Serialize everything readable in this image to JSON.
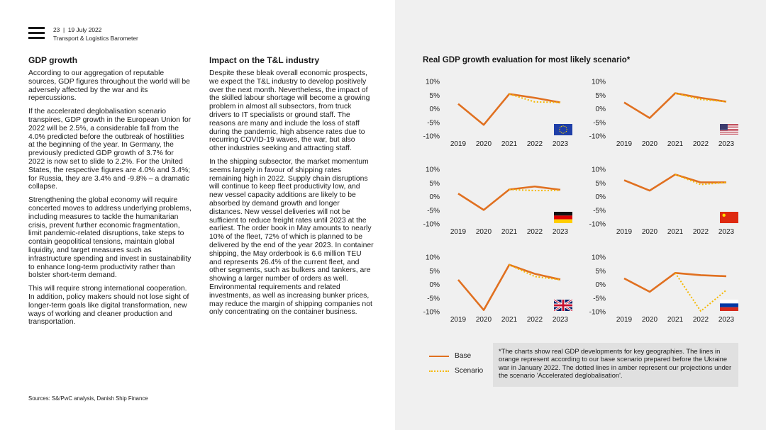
{
  "header": {
    "page_number": "23",
    "separator": "|",
    "date": "19 July 2022",
    "subtitle": "Transport & Logistics Barometer"
  },
  "left_column": {
    "title": "GDP growth",
    "paragraphs": [
      "According to our aggregation of reputable sources, GDP figures throughout the world will be adversely affected by the war and its repercussions.",
      "If the accelerated deglobalisation scenario transpires, GDP growth in the European Union for 2022 will be 2.5%, a considerable fall from the 4.0% predicted before the outbreak of hostilities at the beginning of the year. In Germany, the previously predicted GDP growth of 3.7% for 2022 is now set to slide to 2.2%. For the United States, the respective figures are 4.0% and 3.4%; for Russia, they are 3.4% and -9.8% – a dramatic collapse.",
      "Strengthening the global economy will require concerted moves to address underlying problems, including measures to tackle the humanitarian crisis, prevent further economic fragmentation, limit pandemic-related disruptions, take steps to contain geopolitical tensions, maintain global liquidity, and target measures such as infrastructure spending and invest in sustainability to enhance long-term productivity rather than bolster short-term demand.",
      "This will require strong international cooperation. In addition, policy makers should not lose sight of longer-term goals like digital transformation, new ways of working and cleaner production and transportation."
    ]
  },
  "middle_column": {
    "title": "Impact on the T&L industry",
    "paragraphs": [
      "Despite these bleak overall economic prospects, we expect the T&L industry to develop positively over the next month. Nevertheless, the impact of the skilled labour shortage will become a growing problem in almost all subsectors, from truck drivers to IT specialists or ground staff. The reasons are many and include the loss of staff during the pandemic, high absence rates due to recurring COVID-19 waves, the war, but also other industries seeking and attracting staff.",
      "In the shipping subsector, the market momentum seems largely in favour of shipping rates remaining high in 2022. Supply chain disruptions will continue to keep fleet productivity low, and new vessel capacity additions are likely to be absorbed by demand growth and longer distances. New vessel deliveries will not be sufficient to reduce freight rates until 2023 at the earliest. The order book in May amounts to nearly 10% of the fleet, 72% of which is planned to be delivered by the end of the year 2023. In container shipping, the May orderbook is 6.6 million TEU and represents 26.4% of the current fleet, and other segments, such as bulkers and tankers, are showing a larger number of orders as well. Environmental requirements and related investments, as well as increasing bunker prices, may reduce the margin of shipping companies not only concentrating on the container business."
    ]
  },
  "sources": "Sources: S&/PwC analysis, Danish Ship Finance",
  "charts_title": "Real GDP growth evaluation for most likely scenario*",
  "legend": {
    "base": "Base",
    "scenario": "Scenario"
  },
  "note": "*The charts show real GDP developments for key geographies. The lines in orange represent according to our base scenario prepared before the Ukraine war in January 2022. The dotted lines in amber represent our projections under the scenario 'Accelerated deglobalisation'.",
  "colors": {
    "base": "#e07020",
    "scenario": "#f5b800",
    "panel_bg": "#f0f0f0",
    "note_bg": "#e0e0e0"
  },
  "chart_data": [
    {
      "type": "line",
      "region_icon": "eu-flag-icon",
      "x": [
        "2019",
        "2020",
        "2021",
        "2022",
        "2023"
      ],
      "y_ticks": [
        "10%",
        "5%",
        "0%",
        "-5%",
        "-10%"
      ],
      "ylim": [
        -10,
        10
      ],
      "series": [
        {
          "name": "Base",
          "values": [
            1.8,
            -5.9,
            5.4,
            4.0,
            2.3
          ]
        },
        {
          "name": "Scenario",
          "values": [
            null,
            null,
            5.4,
            2.5,
            2.3
          ]
        }
      ]
    },
    {
      "type": "line",
      "region_icon": "us-flag-icon",
      "x": [
        "2019",
        "2020",
        "2021",
        "2022",
        "2023"
      ],
      "y_ticks": [
        "10%",
        "5%",
        "0%",
        "-5%",
        "-10%"
      ],
      "ylim": [
        -10,
        10
      ],
      "series": [
        {
          "name": "Base",
          "values": [
            2.3,
            -3.4,
            5.7,
            4.0,
            2.6
          ]
        },
        {
          "name": "Scenario",
          "values": [
            null,
            null,
            5.7,
            3.4,
            2.6
          ]
        }
      ]
    },
    {
      "type": "line",
      "region_icon": "de-flag-icon",
      "x": [
        "2019",
        "2020",
        "2021",
        "2022",
        "2023"
      ],
      "y_ticks": [
        "10%",
        "5%",
        "0%",
        "-5%",
        "-10%"
      ],
      "ylim": [
        -10,
        10
      ],
      "series": [
        {
          "name": "Base",
          "values": [
            1.1,
            -4.9,
            2.6,
            3.7,
            2.5
          ]
        },
        {
          "name": "Scenario",
          "values": [
            null,
            null,
            2.6,
            2.2,
            2.3
          ]
        }
      ]
    },
    {
      "type": "line",
      "region_icon": "cn-flag-icon",
      "x": [
        "2019",
        "2020",
        "2021",
        "2022",
        "2023"
      ],
      "y_ticks": [
        "10%",
        "5%",
        "0%",
        "-5%",
        "-10%"
      ],
      "ylim": [
        -10,
        10
      ],
      "series": [
        {
          "name": "Base",
          "values": [
            6.0,
            2.2,
            8.1,
            5.2,
            5.2
          ]
        },
        {
          "name": "Scenario",
          "values": [
            null,
            null,
            8.1,
            4.4,
            5.2
          ]
        }
      ]
    },
    {
      "type": "line",
      "region_icon": "uk-flag-icon",
      "x": [
        "2019",
        "2020",
        "2021",
        "2022",
        "2023"
      ],
      "y_ticks": [
        "10%",
        "5%",
        "0%",
        "-5%",
        "-10%"
      ],
      "ylim": [
        -10,
        10
      ],
      "series": [
        {
          "name": "Base",
          "values": [
            1.7,
            -9.4,
            7.2,
            3.9,
            1.8
          ]
        },
        {
          "name": "Scenario",
          "values": [
            null,
            null,
            7.2,
            2.9,
            1.7
          ]
        }
      ]
    },
    {
      "type": "line",
      "region_icon": "ru-flag-icon",
      "x": [
        "2019",
        "2020",
        "2021",
        "2022",
        "2023"
      ],
      "y_ticks": [
        "10%",
        "5%",
        "0%",
        "-5%",
        "-10%"
      ],
      "ylim": [
        -10,
        10
      ],
      "series": [
        {
          "name": "Base",
          "values": [
            2.2,
            -2.7,
            4.2,
            3.4,
            3.0
          ]
        },
        {
          "name": "Scenario",
          "values": [
            null,
            null,
            4.2,
            -9.8,
            -2.1
          ]
        }
      ]
    }
  ]
}
